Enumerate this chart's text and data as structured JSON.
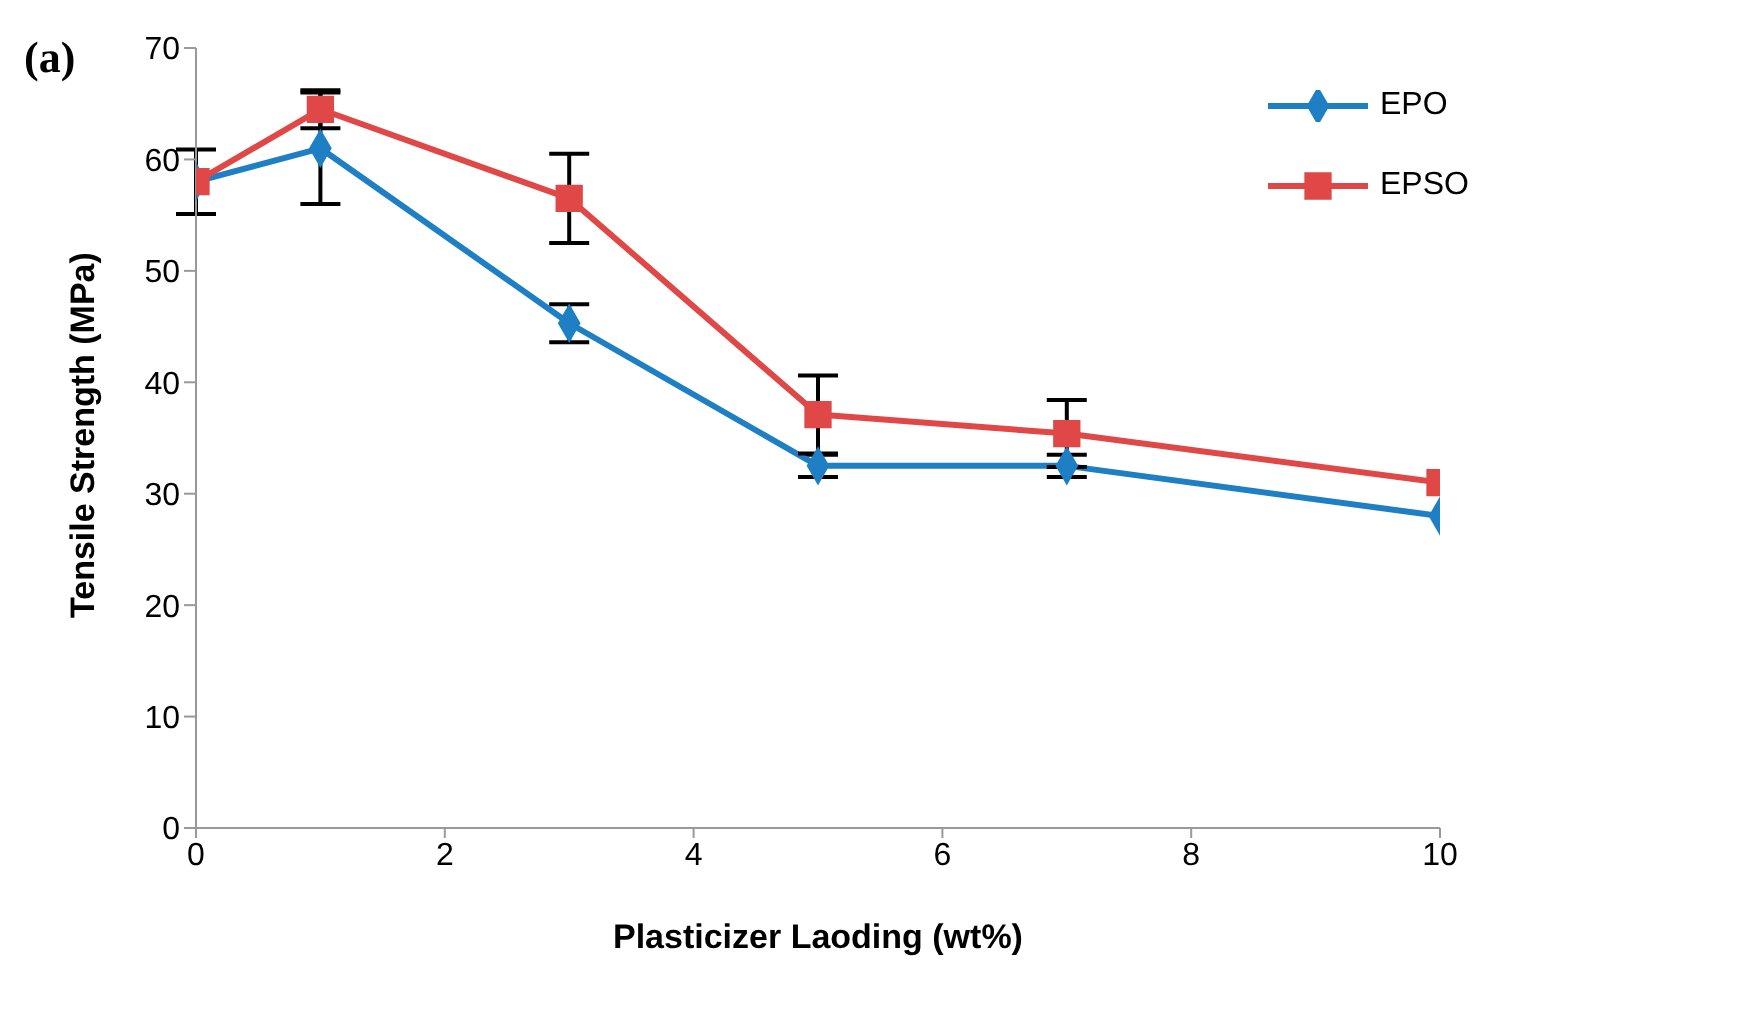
{
  "chart_data": {
    "type": "line",
    "xlabel": "Plasticizer Laoding (wt%)",
    "ylabel": "Tensile Strength (MPa)",
    "annotations": [
      "(a)"
    ],
    "x": [
      0,
      1,
      3,
      5,
      7,
      10
    ],
    "series": [
      {
        "name": "EPO",
        "color": "#1f7fc4",
        "marker": "diamond",
        "values": [
          58,
          61,
          45.3,
          32.5,
          32.5,
          28
        ],
        "errors": [
          2.9,
          5,
          1.7,
          1,
          1,
          null
        ]
      },
      {
        "name": "EPSO",
        "color": "#e04848",
        "marker": "square",
        "values": [
          58,
          64.5,
          56.5,
          37.1,
          35.4,
          31
        ],
        "errors": [
          null,
          1.7,
          4,
          3.5,
          3,
          null
        ]
      }
    ],
    "xlim": [
      0,
      10
    ],
    "xticks": [
      0,
      2,
      4,
      6,
      8,
      10
    ],
    "ylim": [
      0,
      70
    ],
    "yticks": [
      0,
      10,
      20,
      30,
      40,
      50,
      60,
      70
    ],
    "grid": false,
    "legend": "top right",
    "line_style": "solid"
  }
}
